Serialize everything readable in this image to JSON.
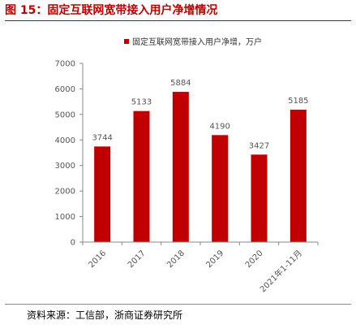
{
  "figure": {
    "title": "图 15：固定互联网宽带接入用户净增情况",
    "source": "资料来源：工信部，浙商证券研究所"
  },
  "colors": {
    "accent": "#c00000",
    "bar": "#c00000",
    "axis": "#888888",
    "text": "#555555"
  },
  "chart_data": {
    "type": "bar",
    "categories": [
      "2016",
      "2017",
      "2018",
      "2019",
      "2020",
      "2021年1-11月"
    ],
    "series": [
      {
        "name": "固定互联网宽带接入用户净增，万户",
        "values": [
          3744,
          5133,
          5884,
          4190,
          3427,
          5185
        ]
      }
    ],
    "yticks": [
      0,
      1000,
      2000,
      3000,
      4000,
      5000,
      6000,
      7000
    ],
    "ylim": [
      0,
      7000
    ],
    "legend_position": "top",
    "grid": false,
    "data_labels": true
  }
}
